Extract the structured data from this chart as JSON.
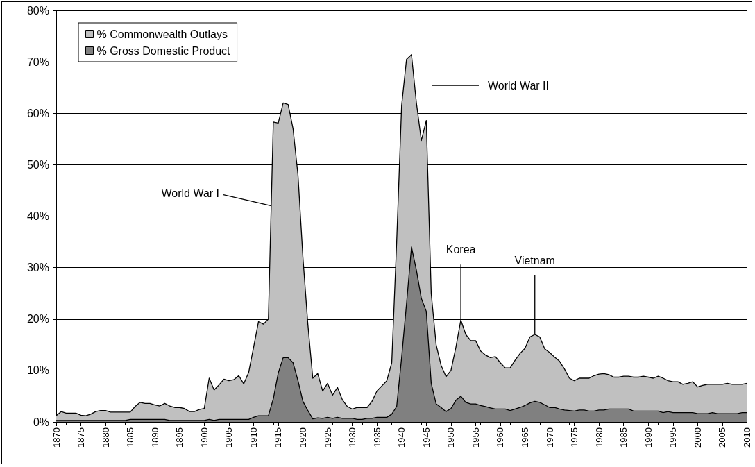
{
  "chart_data": {
    "type": "area",
    "x": [
      1870,
      1871,
      1872,
      1873,
      1874,
      1875,
      1876,
      1877,
      1878,
      1879,
      1880,
      1881,
      1882,
      1883,
      1884,
      1885,
      1886,
      1887,
      1888,
      1889,
      1890,
      1891,
      1892,
      1893,
      1894,
      1895,
      1896,
      1897,
      1898,
      1899,
      1900,
      1901,
      1902,
      1903,
      1904,
      1905,
      1906,
      1907,
      1908,
      1909,
      1910,
      1911,
      1912,
      1913,
      1914,
      1915,
      1916,
      1917,
      1918,
      1919,
      1920,
      1921,
      1922,
      1923,
      1924,
      1925,
      1926,
      1927,
      1928,
      1929,
      1930,
      1931,
      1932,
      1933,
      1934,
      1935,
      1936,
      1937,
      1938,
      1939,
      1940,
      1941,
      1942,
      1943,
      1944,
      1945,
      1946,
      1947,
      1948,
      1949,
      1950,
      1951,
      1952,
      1953,
      1954,
      1955,
      1956,
      1957,
      1958,
      1959,
      1960,
      1961,
      1962,
      1963,
      1964,
      1965,
      1966,
      1967,
      1968,
      1969,
      1970,
      1971,
      1972,
      1973,
      1974,
      1975,
      1976,
      1977,
      1978,
      1979,
      1980,
      1981,
      1982,
      1983,
      1984,
      1985,
      1986,
      1987,
      1988,
      1989,
      1990,
      1991,
      1992,
      1993,
      1994,
      1995,
      1996,
      1997,
      1998,
      1999,
      2000,
      2001,
      2002,
      2003,
      2004,
      2005,
      2006,
      2007,
      2008,
      2009,
      2010
    ],
    "series": [
      {
        "name": "% Commonwealth Outlays",
        "color": "#c0c0c0",
        "values": [
          1.2,
          2.0,
          1.7,
          1.7,
          1.7,
          1.3,
          1.2,
          1.5,
          2.0,
          2.2,
          2.2,
          1.9,
          1.9,
          1.9,
          1.9,
          1.9,
          3.0,
          3.8,
          3.6,
          3.6,
          3.3,
          3.1,
          3.6,
          3.1,
          2.8,
          2.8,
          2.6,
          2.0,
          2.0,
          2.4,
          2.6,
          8.5,
          6.2,
          7.2,
          8.3,
          8.0,
          8.2,
          9.0,
          7.4,
          9.6,
          14.5,
          19.5,
          19.0,
          20.0,
          58.3,
          58.1,
          62.0,
          61.7,
          57.0,
          48.0,
          32.0,
          19.0,
          8.5,
          9.4,
          6.0,
          7.5,
          5.2,
          6.7,
          4.3,
          3.0,
          2.5,
          2.8,
          2.8,
          2.8,
          4.0,
          6.0,
          7.0,
          8.0,
          11.5,
          35.0,
          61.5,
          70.5,
          71.4,
          62.0,
          54.7,
          58.6,
          25.0,
          15.0,
          11.0,
          8.8,
          10.0,
          14.5,
          19.8,
          17.0,
          15.8,
          15.8,
          13.8,
          13.0,
          12.5,
          12.7,
          11.5,
          10.5,
          10.5,
          12.0,
          13.3,
          14.3,
          16.5,
          17.0,
          16.5,
          14.2,
          13.5,
          12.6,
          11.8,
          10.3,
          8.5,
          8.0,
          8.5,
          8.5,
          8.5,
          9.0,
          9.3,
          9.4,
          9.2,
          8.7,
          8.7,
          8.9,
          8.9,
          8.7,
          8.7,
          8.9,
          8.7,
          8.5,
          8.9,
          8.5,
          8.0,
          7.8,
          7.8,
          7.3,
          7.5,
          7.8,
          6.8,
          7.1,
          7.3,
          7.3,
          7.3,
          7.3,
          7.5,
          7.3,
          7.3,
          7.3,
          7.5
        ]
      },
      {
        "name": "% Gross Domestic Product",
        "color": "#808080",
        "values": [
          0.3,
          0.3,
          0.3,
          0.3,
          0.3,
          0.3,
          0.3,
          0.3,
          0.3,
          0.3,
          0.3,
          0.3,
          0.3,
          0.3,
          0.3,
          0.5,
          0.5,
          0.5,
          0.5,
          0.5,
          0.5,
          0.5,
          0.5,
          0.3,
          0.3,
          0.3,
          0.3,
          0.3,
          0.3,
          0.3,
          0.3,
          0.5,
          0.3,
          0.5,
          0.5,
          0.5,
          0.5,
          0.5,
          0.5,
          0.5,
          0.9,
          1.2,
          1.2,
          1.2,
          4.5,
          9.5,
          12.5,
          12.5,
          11.5,
          8.0,
          4.0,
          2.2,
          0.6,
          0.8,
          0.7,
          0.9,
          0.7,
          0.9,
          0.7,
          0.7,
          0.7,
          0.5,
          0.5,
          0.7,
          0.7,
          0.9,
          0.9,
          0.9,
          1.5,
          3.0,
          12.5,
          23.0,
          34.0,
          29.5,
          24.0,
          21.5,
          7.5,
          3.5,
          2.8,
          2.0,
          2.6,
          4.2,
          5.0,
          3.8,
          3.5,
          3.5,
          3.2,
          3.0,
          2.7,
          2.5,
          2.5,
          2.5,
          2.2,
          2.5,
          2.8,
          3.2,
          3.7,
          4.0,
          3.8,
          3.3,
          2.8,
          2.8,
          2.5,
          2.3,
          2.2,
          2.1,
          2.3,
          2.3,
          2.1,
          2.1,
          2.3,
          2.3,
          2.5,
          2.5,
          2.5,
          2.5,
          2.5,
          2.1,
          2.1,
          2.1,
          2.1,
          2.1,
          2.1,
          1.8,
          2.0,
          1.8,
          1.8,
          1.8,
          1.8,
          1.8,
          1.6,
          1.6,
          1.6,
          1.8,
          1.6,
          1.6,
          1.6,
          1.6,
          1.6,
          1.8,
          1.8
        ]
      }
    ],
    "xlim": [
      1870,
      2010
    ],
    "xticks": [
      1870,
      1875,
      1880,
      1885,
      1890,
      1895,
      1900,
      1905,
      1910,
      1915,
      1920,
      1925,
      1930,
      1935,
      1940,
      1945,
      1950,
      1955,
      1960,
      1965,
      1970,
      1975,
      1980,
      1985,
      1990,
      1995,
      2000,
      2005,
      2010
    ],
    "ylim": [
      0,
      80
    ],
    "yticks": [
      {
        "value": 0,
        "label": "0%"
      },
      {
        "value": 10,
        "label": "10%"
      },
      {
        "value": 20,
        "label": "20%"
      },
      {
        "value": 30,
        "label": "30%"
      },
      {
        "value": 40,
        "label": "40%"
      },
      {
        "value": 50,
        "label": "50%"
      },
      {
        "value": 60,
        "label": "60%"
      },
      {
        "value": 70,
        "label": "70%"
      },
      {
        "value": 80,
        "label": "80%"
      }
    ],
    "grid": "y",
    "legend": "top left",
    "annotations": [
      {
        "text": "World War I",
        "x": 1913.6,
        "y": 42
      },
      "World War II",
      {
        "text": "Korea",
        "x": 1952,
        "y": 19.8
      },
      {
        "text": "Vietnam",
        "x": 1967,
        "y": 17
      }
    ]
  }
}
